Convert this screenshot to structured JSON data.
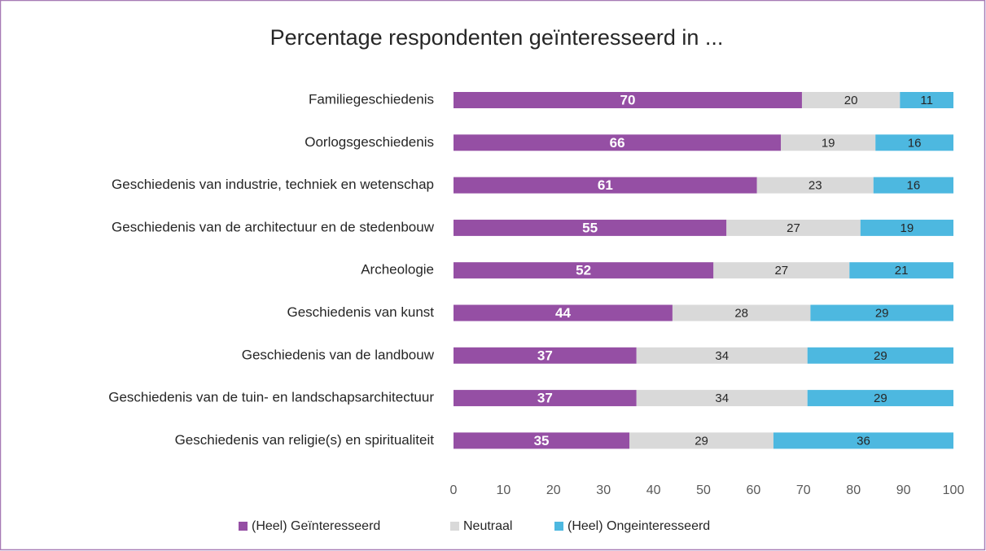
{
  "chart_data": {
    "type": "stacked_barh",
    "title": "Percentage respondenten geïnteresseerd in ...",
    "categories": [
      "Familiegeschiedenis",
      "Oorlogsgeschiedenis",
      "Geschiedenis van industrie, techniek en wetenschap",
      "Geschiedenis van de architectuur en de stedenbouw",
      "Archeologie",
      "Geschiedenis van kunst",
      "Geschiedenis van de landbouw",
      "Geschiedenis van de tuin- en landschapsarchitectuur",
      "Geschiedenis van religie(s) en spiritualiteit"
    ],
    "series": [
      {
        "name": "(Heel) Geïnteresseerd",
        "color": "#954fa4",
        "values": [
          69.7,
          65.5,
          60.7,
          54.6,
          52.0,
          43.8,
          36.6,
          36.6,
          35.2
        ],
        "value_labels": [
          "70",
          "66",
          "61",
          "55",
          "52",
          "44",
          "37",
          "37",
          "35"
        ]
      },
      {
        "name": "Neutraal",
        "color": "#d9d9d9",
        "values": [
          19.6,
          18.9,
          23.3,
          26.8,
          27.2,
          27.6,
          34.2,
          34.2,
          28.8
        ],
        "value_labels": [
          "20",
          "19",
          "23",
          "27",
          "27",
          "28",
          "34",
          "34",
          "29"
        ]
      },
      {
        "name": "(Heel) Ongeinteresseerd",
        "color": "#4db8e0",
        "values": [
          10.7,
          15.6,
          16.0,
          18.6,
          20.8,
          28.6,
          29.2,
          29.2,
          36.0
        ],
        "value_labels": [
          "11",
          "16",
          "16",
          "19",
          "21",
          "29",
          "29",
          "29",
          "36"
        ]
      }
    ],
    "xlim": [
      0,
      100
    ],
    "xticks": [
      0,
      10,
      20,
      30,
      40,
      50,
      60,
      70,
      80,
      90,
      100
    ],
    "grid": false,
    "legend": "bottom"
  }
}
